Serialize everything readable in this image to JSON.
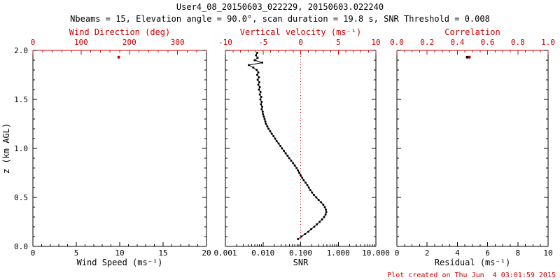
{
  "title": "User4_08_20150603_022229, 20150603.022240",
  "subtitle": "Nbeams = 15, Elevation angle = 90.0°, scan duration = 19.8 s, SNR Threshold = 0.008",
  "footer": "Plot created on Thu Jun  4 03:01:59 2015",
  "colors": {
    "axis": "#000000",
    "accent": "#cc0000",
    "background": "#ffffff"
  },
  "chart_data": [
    {
      "name": "wind-panel",
      "type": "scatter",
      "y_labels": true,
      "bottom_axis": {
        "label": "Wind Speed (ms⁻¹)",
        "range": [
          0,
          20
        ],
        "minor": 1,
        "ticks": [
          0,
          5,
          10,
          15,
          20
        ],
        "tick_labels": [
          "0",
          "5",
          "10",
          "15",
          "20"
        ]
      },
      "top_axis": {
        "label": "Wind Direction (deg)",
        "range": [
          0,
          360
        ],
        "minor": 20,
        "ticks": [
          0,
          100,
          200,
          300
        ],
        "tick_labels": [
          "0",
          "100",
          "200",
          "300"
        ]
      },
      "y_axis": {
        "label": "z (km AGL)",
        "range": [
          0,
          2
        ],
        "minor": 0.1,
        "ticks": [
          0,
          0.5,
          1.0,
          1.5,
          2.0
        ],
        "tick_labels": [
          "0.0",
          "0.5",
          "1.0",
          "1.5",
          "2.0"
        ]
      },
      "series": [
        {
          "name": "wind-direction-point",
          "axis": "top",
          "color": "#cc0000",
          "marker_radius": 2,
          "connect": false,
          "points": [
            [
              178,
              1.93
            ]
          ]
        }
      ]
    },
    {
      "name": "snr-panel",
      "type": "scatter",
      "y_labels": false,
      "bottom_axis": {
        "label": "SNR",
        "scale": "log",
        "range": [
          0.001,
          10
        ],
        "ticks": [
          0.001,
          0.01,
          0.1,
          1,
          10
        ],
        "tick_labels": [
          "0.001",
          "0.010",
          "0.100",
          "1.000",
          "10.000"
        ]
      },
      "top_axis": {
        "label": "Vertical velocity (ms⁻¹)",
        "range": [
          -10,
          10
        ],
        "minor": 1,
        "ticks": [
          -10,
          -5,
          0,
          5,
          10
        ],
        "tick_labels": [
          "-10",
          "-5",
          "0",
          "5",
          "10"
        ]
      },
      "y_axis": {
        "label": "z (km AGL)",
        "range": [
          0,
          2
        ],
        "minor": 0.1,
        "ticks": [
          0,
          0.5,
          1.0,
          1.5,
          2.0
        ],
        "tick_labels": [
          "0.0",
          "0.5",
          "1.0",
          "1.5",
          "2.0"
        ]
      },
      "reference_line": {
        "axis": "top",
        "value": 0,
        "style": "dotted",
        "color": "#cc0000"
      },
      "series": [
        {
          "name": "snr-profile",
          "axis": "bottom",
          "color": "#000000",
          "marker_radius": 1.5,
          "connect": true,
          "points": [
            [
              0.085,
              0.075
            ],
            [
              0.105,
              0.1
            ],
            [
              0.13,
              0.125
            ],
            [
              0.16,
              0.15
            ],
            [
              0.19,
              0.175
            ],
            [
              0.23,
              0.2
            ],
            [
              0.27,
              0.225
            ],
            [
              0.32,
              0.25
            ],
            [
              0.37,
              0.275
            ],
            [
              0.42,
              0.3
            ],
            [
              0.46,
              0.325
            ],
            [
              0.48,
              0.35
            ],
            [
              0.47,
              0.375
            ],
            [
              0.44,
              0.4
            ],
            [
              0.4,
              0.425
            ],
            [
              0.35,
              0.45
            ],
            [
              0.3,
              0.475
            ],
            [
              0.26,
              0.5
            ],
            [
              0.225,
              0.525
            ],
            [
              0.2,
              0.55
            ],
            [
              0.18,
              0.575
            ],
            [
              0.165,
              0.6
            ],
            [
              0.15,
              0.625
            ],
            [
              0.135,
              0.65
            ],
            [
              0.12,
              0.675
            ],
            [
              0.11,
              0.7
            ],
            [
              0.1,
              0.725
            ],
            [
              0.092,
              0.75
            ],
            [
              0.085,
              0.775
            ],
            [
              0.078,
              0.8
            ],
            [
              0.07,
              0.825
            ],
            [
              0.063,
              0.85
            ],
            [
              0.056,
              0.875
            ],
            [
              0.05,
              0.9
            ],
            [
              0.045,
              0.925
            ],
            [
              0.04,
              0.95
            ],
            [
              0.036,
              0.975
            ],
            [
              0.032,
              1.0
            ],
            [
              0.029,
              1.025
            ],
            [
              0.026,
              1.05
            ],
            [
              0.023,
              1.075
            ],
            [
              0.021,
              1.1
            ],
            [
              0.019,
              1.125
            ],
            [
              0.017,
              1.15
            ],
            [
              0.0155,
              1.175
            ],
            [
              0.014,
              1.2
            ],
            [
              0.013,
              1.225
            ],
            [
              0.012,
              1.25
            ],
            [
              0.0115,
              1.275
            ],
            [
              0.011,
              1.3
            ],
            [
              0.0105,
              1.325
            ],
            [
              0.01,
              1.35
            ],
            [
              0.0098,
              1.375
            ],
            [
              0.0092,
              1.4
            ],
            [
              0.0095,
              1.425
            ],
            [
              0.0088,
              1.45
            ],
            [
              0.0092,
              1.475
            ],
            [
              0.0085,
              1.5
            ],
            [
              0.009,
              1.525
            ],
            [
              0.0082,
              1.55
            ],
            [
              0.0086,
              1.575
            ],
            [
              0.0078,
              1.6
            ],
            [
              0.0082,
              1.625
            ],
            [
              0.0075,
              1.65
            ],
            [
              0.008,
              1.675
            ],
            [
              0.0072,
              1.7
            ],
            [
              0.0078,
              1.725
            ],
            [
              0.007,
              1.75
            ],
            [
              0.0075,
              1.775
            ],
            [
              0.0068,
              1.8
            ],
            [
              0.0055,
              1.825
            ],
            [
              0.0042,
              1.85
            ],
            [
              0.0095,
              1.875
            ],
            [
              0.006,
              1.9
            ],
            [
              0.0072,
              1.925
            ],
            [
              0.0065,
              1.95
            ],
            [
              0.007,
              1.975
            ]
          ]
        }
      ]
    },
    {
      "name": "residual-panel",
      "type": "scatter",
      "y_labels": false,
      "bottom_axis": {
        "label": "Residual (ms⁻¹)",
        "range": [
          0,
          10
        ],
        "minor": 0.5,
        "ticks": [
          0,
          2,
          4,
          6,
          8,
          10
        ],
        "tick_labels": [
          "0",
          "2",
          "4",
          "6",
          "8",
          "10"
        ]
      },
      "top_axis": {
        "label": "Correlation",
        "range": [
          0,
          1
        ],
        "minor": 0.05,
        "ticks": [
          0,
          0.2,
          0.4,
          0.6,
          0.8,
          1.0
        ],
        "tick_labels": [
          "0.0",
          "0.2",
          "0.4",
          "0.6",
          "0.8",
          "1.0"
        ]
      },
      "y_axis": {
        "label": "z (km AGL)",
        "range": [
          0,
          2
        ],
        "minor": 0.1,
        "ticks": [
          0,
          0.5,
          1.0,
          1.5,
          2.0
        ],
        "tick_labels": [
          "0.0",
          "0.5",
          "1.0",
          "1.5",
          "2.0"
        ]
      },
      "series": [
        {
          "name": "correlation-point",
          "axis": "top",
          "color": "#cc0000",
          "marker_radius": 2,
          "connect": false,
          "points": [
            [
              0.48,
              1.93
            ]
          ]
        },
        {
          "name": "residual-point",
          "axis": "bottom",
          "color": "#000000",
          "marker_radius": 2,
          "connect": false,
          "points": [
            [
              4.65,
              1.93
            ]
          ]
        }
      ]
    }
  ]
}
